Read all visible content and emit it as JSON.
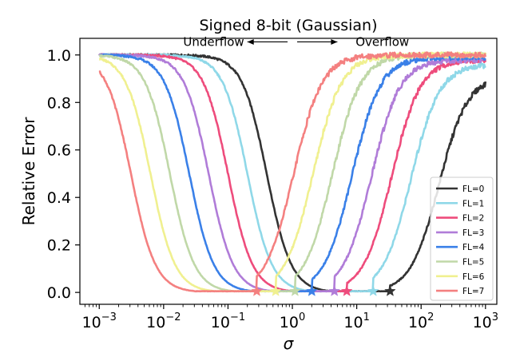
{
  "chart_data": {
    "type": "line",
    "title": "Signed 8-bit (Gaussian)",
    "xlabel": "σ",
    "ylabel": "Relative Error",
    "xscale": "log",
    "xlim": [
      0.0005,
      1500
    ],
    "ylim": [
      -0.05,
      1.07
    ],
    "xticks": [
      {
        "value": 0.001,
        "exp": "−3"
      },
      {
        "value": 0.01,
        "exp": "−2"
      },
      {
        "value": 0.1,
        "exp": "−1"
      },
      {
        "value": 1,
        "exp": "0"
      },
      {
        "value": 10,
        "exp": "1"
      },
      {
        "value": 100,
        "exp": "2"
      },
      {
        "value": 1000,
        "exp": "3"
      }
    ],
    "xtick_base": "10",
    "yticks": [
      {
        "value": 0.0,
        "label": "0.0"
      },
      {
        "value": 0.2,
        "label": "0.2"
      },
      {
        "value": 0.4,
        "label": "0.4"
      },
      {
        "value": 0.6,
        "label": "0.6"
      },
      {
        "value": 0.8,
        "label": "0.8"
      },
      {
        "value": 1.0,
        "label": "1.0"
      }
    ],
    "annotations": {
      "underflow": "Underflow",
      "overflow": "Overflow",
      "arrow_from": 1.0,
      "arrow_left_to": 0.2,
      "arrow_right_to": 5.0,
      "arrow_y": 1.055
    },
    "legend": "lower-right",
    "x_start": 0.001,
    "x_end": 1000,
    "series": [
      {
        "name": "FL=0",
        "color": "#333333",
        "minimum_sigma": 33.0,
        "underflow_mid": 0.4,
        "underflow_width": 0.19,
        "overflow_mid": 190,
        "overflow_width": 0.22,
        "rise_start": 0.27,
        "overflow_end": 0.91
      },
      {
        "name": "FL=1",
        "color": "#8fd8e8",
        "minimum_sigma": 18.0,
        "underflow_mid": 0.2,
        "underflow_width": 0.19,
        "overflow_mid": 70,
        "overflow_width": 0.22,
        "rise_start": 0.27,
        "overflow_end": 0.96
      },
      {
        "name": "FL=2",
        "color": "#ee4c7c",
        "minimum_sigma": 7.0,
        "underflow_mid": 0.1,
        "underflow_width": 0.19,
        "overflow_mid": 35,
        "overflow_width": 0.22,
        "rise_start": 0.27,
        "overflow_end": 0.98
      },
      {
        "name": "FL=3",
        "color": "#b07cd8",
        "minimum_sigma": 4.5,
        "underflow_mid": 0.05,
        "underflow_width": 0.19,
        "overflow_mid": 17,
        "overflow_width": 0.22,
        "rise_start": 0.27,
        "overflow_end": 0.98
      },
      {
        "name": "FL=4",
        "color": "#3a80e8",
        "minimum_sigma": 2.0,
        "underflow_mid": 0.025,
        "underflow_width": 0.19,
        "overflow_mid": 8.5,
        "overflow_width": 0.22,
        "rise_start": 0.27,
        "overflow_end": 0.99
      },
      {
        "name": "FL=5",
        "color": "#c0d8a8",
        "minimum_sigma": 1.1,
        "underflow_mid": 0.0125,
        "underflow_width": 0.19,
        "overflow_mid": 4.2,
        "overflow_width": 0.22,
        "rise_start": 0.27,
        "overflow_end": 1.0
      },
      {
        "name": "FL=6",
        "color": "#f0f090",
        "minimum_sigma": 0.55,
        "underflow_mid": 0.00625,
        "underflow_width": 0.19,
        "overflow_mid": 2.1,
        "overflow_width": 0.22,
        "rise_start": 0.27,
        "overflow_end": 1.0
      },
      {
        "name": "FL=7",
        "color": "#f48080",
        "minimum_sigma": 0.28,
        "underflow_mid": 0.0031,
        "underflow_width": 0.19,
        "overflow_mid": 1.05,
        "overflow_width": 0.22,
        "rise_start": 0.27,
        "overflow_end": 1.0
      }
    ]
  }
}
